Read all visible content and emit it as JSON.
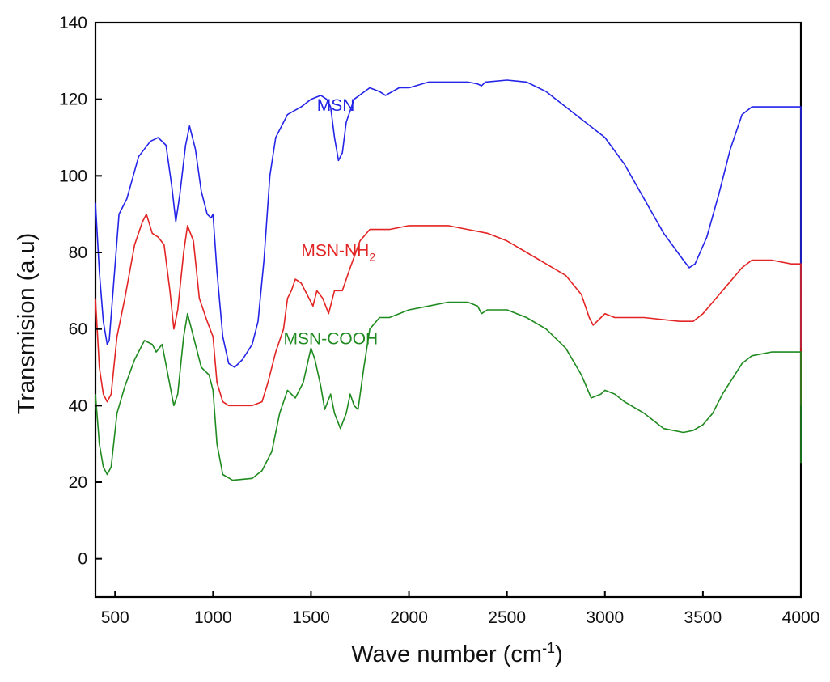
{
  "chart_data": {
    "type": "line",
    "xlabel": "Wave number (cm",
    "xlabel_sup": "-1",
    "xlabel_end": ")",
    "ylabel": "Transmision (a.u)",
    "xlim": [
      400,
      4000
    ],
    "ylim": [
      -10,
      140
    ],
    "xticks": [
      500,
      1000,
      1500,
      2000,
      2500,
      3000,
      3500,
      4000
    ],
    "yticks": [
      0,
      20,
      40,
      60,
      80,
      100,
      120,
      140
    ],
    "grid": false,
    "legend": "inline labels",
    "series": [
      {
        "name": "MSN",
        "color": "#2424e8",
        "label_parts": [
          {
            "text": "MSN",
            "sub": ""
          }
        ],
        "points": [
          [
            400,
            93
          ],
          [
            420,
            75
          ],
          [
            440,
            62
          ],
          [
            460,
            56
          ],
          [
            470,
            57
          ],
          [
            490,
            70
          ],
          [
            520,
            90
          ],
          [
            560,
            94
          ],
          [
            620,
            105
          ],
          [
            680,
            109
          ],
          [
            720,
            110
          ],
          [
            760,
            108
          ],
          [
            790,
            97
          ],
          [
            810,
            88
          ],
          [
            830,
            95
          ],
          [
            860,
            108
          ],
          [
            880,
            113
          ],
          [
            910,
            107
          ],
          [
            940,
            96
          ],
          [
            970,
            90
          ],
          [
            990,
            89
          ],
          [
            1000,
            90
          ],
          [
            1020,
            75
          ],
          [
            1050,
            58
          ],
          [
            1080,
            51
          ],
          [
            1110,
            50
          ],
          [
            1150,
            52
          ],
          [
            1200,
            56
          ],
          [
            1230,
            62
          ],
          [
            1260,
            78
          ],
          [
            1290,
            100
          ],
          [
            1320,
            110
          ],
          [
            1380,
            116
          ],
          [
            1450,
            118
          ],
          [
            1500,
            120
          ],
          [
            1550,
            121
          ],
          [
            1580,
            120
          ],
          [
            1600,
            118
          ],
          [
            1620,
            110
          ],
          [
            1640,
            104
          ],
          [
            1660,
            106
          ],
          [
            1680,
            114
          ],
          [
            1720,
            120
          ],
          [
            1800,
            123
          ],
          [
            1850,
            122
          ],
          [
            1880,
            121
          ],
          [
            1950,
            123
          ],
          [
            2000,
            123
          ],
          [
            2100,
            124.5
          ],
          [
            2200,
            124.5
          ],
          [
            2300,
            124.5
          ],
          [
            2350,
            124
          ],
          [
            2370,
            123.5
          ],
          [
            2390,
            124.5
          ],
          [
            2500,
            125
          ],
          [
            2600,
            124.5
          ],
          [
            2700,
            122
          ],
          [
            2800,
            118
          ],
          [
            2900,
            114
          ],
          [
            3000,
            110
          ],
          [
            3100,
            103
          ],
          [
            3200,
            94
          ],
          [
            3300,
            85
          ],
          [
            3400,
            78
          ],
          [
            3430,
            76
          ],
          [
            3460,
            77
          ],
          [
            3520,
            84
          ],
          [
            3580,
            95
          ],
          [
            3640,
            107
          ],
          [
            3700,
            116
          ],
          [
            3750,
            118
          ],
          [
            3850,
            118
          ],
          [
            4000,
            118
          ],
          [
            4000,
            55
          ]
        ]
      },
      {
        "name": "MSN-NH2",
        "color": "#e32424",
        "label_parts": [
          {
            "text": "MSN-NH",
            "sub": "2"
          }
        ],
        "points": [
          [
            400,
            68
          ],
          [
            420,
            50
          ],
          [
            440,
            43
          ],
          [
            460,
            41
          ],
          [
            480,
            43
          ],
          [
            510,
            58
          ],
          [
            550,
            68
          ],
          [
            600,
            82
          ],
          [
            640,
            88
          ],
          [
            660,
            90
          ],
          [
            690,
            85
          ],
          [
            720,
            84
          ],
          [
            750,
            82
          ],
          [
            780,
            70
          ],
          [
            800,
            60
          ],
          [
            820,
            65
          ],
          [
            850,
            80
          ],
          [
            870,
            87
          ],
          [
            900,
            83
          ],
          [
            930,
            68
          ],
          [
            970,
            62
          ],
          [
            1000,
            58
          ],
          [
            1020,
            46
          ],
          [
            1050,
            41
          ],
          [
            1080,
            40
          ],
          [
            1200,
            40
          ],
          [
            1250,
            41
          ],
          [
            1280,
            46
          ],
          [
            1320,
            54
          ],
          [
            1360,
            60
          ],
          [
            1380,
            68
          ],
          [
            1400,
            70
          ],
          [
            1420,
            73
          ],
          [
            1450,
            72
          ],
          [
            1480,
            69
          ],
          [
            1510,
            66
          ],
          [
            1530,
            70
          ],
          [
            1560,
            68
          ],
          [
            1590,
            64
          ],
          [
            1620,
            70
          ],
          [
            1660,
            70
          ],
          [
            1700,
            76
          ],
          [
            1750,
            83
          ],
          [
            1800,
            86
          ],
          [
            1900,
            86
          ],
          [
            2000,
            87
          ],
          [
            2200,
            87
          ],
          [
            2300,
            86
          ],
          [
            2400,
            85
          ],
          [
            2500,
            83
          ],
          [
            2600,
            80
          ],
          [
            2700,
            77
          ],
          [
            2800,
            74
          ],
          [
            2880,
            69
          ],
          [
            2920,
            63
          ],
          [
            2940,
            61
          ],
          [
            2980,
            63
          ],
          [
            3000,
            64
          ],
          [
            3050,
            63
          ],
          [
            3200,
            63
          ],
          [
            3380,
            62
          ],
          [
            3450,
            62
          ],
          [
            3500,
            64
          ],
          [
            3600,
            70
          ],
          [
            3700,
            76
          ],
          [
            3750,
            78
          ],
          [
            3850,
            78
          ],
          [
            3950,
            77
          ],
          [
            4000,
            77
          ],
          [
            4000,
            40
          ]
        ]
      },
      {
        "name": "MSN-COOH",
        "color": "#1f8a1f",
        "label_parts": [
          {
            "text": "MSN-COOH",
            "sub": ""
          }
        ],
        "points": [
          [
            400,
            43
          ],
          [
            420,
            30
          ],
          [
            440,
            24
          ],
          [
            460,
            22
          ],
          [
            480,
            24
          ],
          [
            510,
            38
          ],
          [
            550,
            45
          ],
          [
            600,
            52
          ],
          [
            650,
            57
          ],
          [
            690,
            56
          ],
          [
            710,
            54
          ],
          [
            740,
            56
          ],
          [
            770,
            48
          ],
          [
            800,
            40
          ],
          [
            820,
            43
          ],
          [
            850,
            58
          ],
          [
            870,
            64
          ],
          [
            900,
            58
          ],
          [
            940,
            50
          ],
          [
            980,
            48
          ],
          [
            1000,
            44
          ],
          [
            1020,
            30
          ],
          [
            1050,
            22
          ],
          [
            1100,
            20.5
          ],
          [
            1200,
            21
          ],
          [
            1250,
            23
          ],
          [
            1300,
            28
          ],
          [
            1340,
            38
          ],
          [
            1380,
            44
          ],
          [
            1420,
            42
          ],
          [
            1460,
            46
          ],
          [
            1500,
            55
          ],
          [
            1520,
            52
          ],
          [
            1550,
            45
          ],
          [
            1570,
            39
          ],
          [
            1600,
            43
          ],
          [
            1620,
            38
          ],
          [
            1650,
            34
          ],
          [
            1680,
            38
          ],
          [
            1700,
            43
          ],
          [
            1720,
            40
          ],
          [
            1740,
            39
          ],
          [
            1770,
            50
          ],
          [
            1800,
            60
          ],
          [
            1850,
            63
          ],
          [
            1900,
            63
          ],
          [
            2000,
            65
          ],
          [
            2100,
            66
          ],
          [
            2200,
            67
          ],
          [
            2300,
            67
          ],
          [
            2350,
            66
          ],
          [
            2370,
            64
          ],
          [
            2400,
            65
          ],
          [
            2500,
            65
          ],
          [
            2600,
            63
          ],
          [
            2700,
            60
          ],
          [
            2800,
            55
          ],
          [
            2880,
            48
          ],
          [
            2930,
            42
          ],
          [
            2980,
            43
          ],
          [
            3000,
            44
          ],
          [
            3050,
            43
          ],
          [
            3100,
            41
          ],
          [
            3200,
            38
          ],
          [
            3300,
            34
          ],
          [
            3400,
            33
          ],
          [
            3450,
            33.5
          ],
          [
            3500,
            35
          ],
          [
            3550,
            38
          ],
          [
            3600,
            43
          ],
          [
            3650,
            47
          ],
          [
            3700,
            51
          ],
          [
            3750,
            53
          ],
          [
            3850,
            54
          ],
          [
            4000,
            54
          ],
          [
            4000,
            25
          ]
        ]
      }
    ]
  }
}
